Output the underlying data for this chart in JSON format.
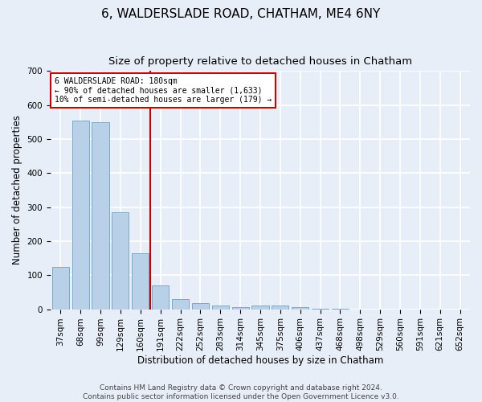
{
  "title": "6, WALDERSLADE ROAD, CHATHAM, ME4 6NY",
  "subtitle": "Size of property relative to detached houses in Chatham",
  "xlabel": "Distribution of detached houses by size in Chatham",
  "ylabel": "Number of detached properties",
  "categories": [
    "37sqm",
    "68sqm",
    "99sqm",
    "129sqm",
    "160sqm",
    "191sqm",
    "222sqm",
    "252sqm",
    "283sqm",
    "314sqm",
    "345sqm",
    "375sqm",
    "406sqm",
    "437sqm",
    "468sqm",
    "498sqm",
    "529sqm",
    "560sqm",
    "591sqm",
    "621sqm",
    "652sqm"
  ],
  "values": [
    125,
    555,
    550,
    285,
    165,
    70,
    30,
    18,
    12,
    6,
    10,
    10,
    5,
    2,
    1,
    0,
    0,
    0,
    0,
    0,
    0
  ],
  "bar_color": "#b8d0e8",
  "bar_edge_color": "#7aaac8",
  "vline_color": "#cc0000",
  "annotation_text": "6 WALDERSLADE ROAD: 180sqm\n← 90% of detached houses are smaller (1,633)\n10% of semi-detached houses are larger (179) →",
  "annotation_box_color": "#ffffff",
  "annotation_box_edge": "#cc0000",
  "ylim": [
    0,
    700
  ],
  "yticks": [
    0,
    100,
    200,
    300,
    400,
    500,
    600,
    700
  ],
  "footer_text": "Contains HM Land Registry data © Crown copyright and database right 2024.\nContains public sector information licensed under the Open Government Licence v3.0.",
  "bg_color": "#e8eef8",
  "grid_color": "#ffffff",
  "title_fontsize": 11,
  "subtitle_fontsize": 9.5,
  "axis_label_fontsize": 8.5,
  "tick_fontsize": 7.5,
  "footer_fontsize": 6.5
}
